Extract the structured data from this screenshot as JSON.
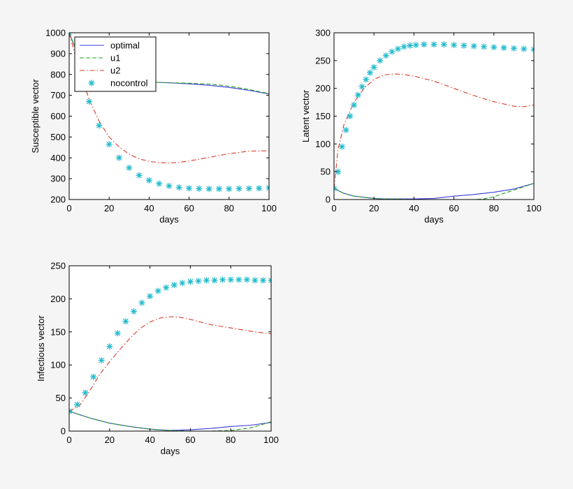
{
  "chart_data": [
    {
      "type": "line",
      "xlabel": "days",
      "ylabel": "Susceptible vector",
      "xlim": [
        0,
        100
      ],
      "ylim": [
        200,
        1000
      ],
      "xticks": [
        0,
        20,
        40,
        60,
        80,
        100
      ],
      "yticks": [
        200,
        300,
        400,
        500,
        600,
        700,
        800,
        900,
        1000
      ],
      "grid": false,
      "legend_position": "top-left",
      "series": [
        {
          "name": "optimal",
          "color": "#3a3ad8",
          "style": "solid",
          "x": [
            0,
            5,
            10,
            15,
            20,
            30,
            40,
            50,
            60,
            70,
            80,
            90,
            100
          ],
          "y": [
            1000,
            880,
            810,
            785,
            775,
            768,
            764,
            760,
            755,
            748,
            738,
            724,
            706
          ]
        },
        {
          "name": "u1",
          "color": "#22a022",
          "style": "dashed",
          "x": [
            0,
            5,
            10,
            15,
            20,
            30,
            40,
            50,
            60,
            70,
            80,
            90,
            100
          ],
          "y": [
            1000,
            880,
            810,
            785,
            775,
            768,
            764,
            760,
            758,
            754,
            744,
            728,
            708
          ]
        },
        {
          "name": "u2",
          "color": "#d83a2a",
          "style": "dashdot",
          "x": [
            0,
            5,
            10,
            15,
            20,
            25,
            30,
            35,
            40,
            45,
            50,
            55,
            60,
            70,
            80,
            90,
            100
          ],
          "y": [
            1000,
            820,
            680,
            575,
            500,
            452,
            418,
            395,
            383,
            377,
            375,
            378,
            385,
            402,
            420,
            432,
            434
          ]
        },
        {
          "name": "nocontrol",
          "color": "#22bbcc",
          "style": "markers",
          "x": [
            0,
            5,
            10,
            15,
            20,
            25,
            30,
            35,
            40,
            45,
            50,
            55,
            60,
            65,
            70,
            75,
            80,
            85,
            90,
            95,
            100
          ],
          "y": [
            1000,
            820,
            670,
            555,
            465,
            400,
            352,
            316,
            292,
            276,
            265,
            258,
            254,
            252,
            251,
            251,
            251,
            252,
            253,
            254,
            256
          ]
        }
      ]
    },
    {
      "type": "line",
      "xlabel": "days",
      "ylabel": "Latent vector",
      "xlim": [
        0,
        100
      ],
      "ylim": [
        0,
        300
      ],
      "xticks": [
        0,
        20,
        40,
        60,
        80,
        100
      ],
      "yticks": [
        0,
        50,
        100,
        150,
        200,
        250,
        300
      ],
      "grid": false,
      "series": [
        {
          "name": "optimal",
          "color": "#3a3ad8",
          "style": "solid",
          "x": [
            0,
            5,
            10,
            15,
            20,
            25,
            30,
            40,
            50,
            60,
            70,
            80,
            90,
            100
          ],
          "y": [
            20,
            11,
            6,
            4,
            2,
            1,
            1,
            1,
            2,
            6,
            9,
            13,
            19,
            29
          ]
        },
        {
          "name": "u1",
          "color": "#22a022",
          "style": "dashed",
          "x": [
            0,
            5,
            10,
            15,
            20,
            25,
            30,
            40,
            50,
            60,
            70,
            75,
            80,
            90,
            100
          ],
          "y": [
            20,
            11,
            6,
            4,
            2,
            1,
            1,
            0,
            0,
            0,
            0,
            1,
            5,
            17,
            29
          ]
        },
        {
          "name": "u2",
          "color": "#d83a2a",
          "style": "dashdot",
          "x": [
            0,
            2,
            5,
            10,
            15,
            20,
            25,
            30,
            35,
            40,
            50,
            60,
            70,
            80,
            90,
            95,
            100
          ],
          "y": [
            20,
            90,
            135,
            175,
            200,
            216,
            224,
            226,
            225,
            222,
            213,
            200,
            187,
            176,
            168,
            167,
            170
          ]
        },
        {
          "name": "nocontrol",
          "color": "#22bbcc",
          "style": "markers",
          "x": [
            0,
            2,
            4,
            6,
            8,
            10,
            12,
            14,
            16,
            18,
            20,
            23,
            26,
            29,
            32,
            35,
            38,
            41,
            45,
            50,
            55,
            60,
            65,
            70,
            75,
            80,
            85,
            90,
            95,
            100
          ],
          "y": [
            20,
            50,
            95,
            125,
            150,
            170,
            188,
            203,
            216,
            228,
            238,
            250,
            259,
            266,
            271,
            275,
            277,
            278,
            279,
            279,
            279,
            278,
            277,
            276,
            275,
            274,
            273,
            272,
            271,
            270
          ]
        }
      ]
    },
    {
      "type": "line",
      "xlabel": "days",
      "ylabel": "Infectious vector",
      "xlim": [
        0,
        100
      ],
      "ylim": [
        0,
        250
      ],
      "xticks": [
        0,
        20,
        40,
        60,
        80,
        100
      ],
      "yticks": [
        0,
        50,
        100,
        150,
        200,
        250
      ],
      "grid": false,
      "series": [
        {
          "name": "optimal",
          "color": "#3a3ad8",
          "style": "solid",
          "x": [
            0,
            5,
            10,
            15,
            20,
            30,
            40,
            50,
            60,
            70,
            80,
            90,
            100
          ],
          "y": [
            30,
            25,
            20,
            16,
            12,
            7,
            3,
            1,
            2,
            4,
            7,
            9,
            13
          ]
        },
        {
          "name": "u1",
          "color": "#22a022",
          "style": "dashed",
          "x": [
            0,
            5,
            10,
            15,
            20,
            30,
            40,
            50,
            60,
            70,
            80,
            90,
            100
          ],
          "y": [
            30,
            25,
            20,
            16,
            12,
            7,
            3,
            1,
            0,
            0,
            1,
            5,
            14
          ]
        },
        {
          "name": "u2",
          "color": "#d83a2a",
          "style": "dashdot",
          "x": [
            0,
            5,
            10,
            15,
            20,
            25,
            30,
            35,
            40,
            45,
            50,
            55,
            60,
            65,
            70,
            80,
            90,
            100
          ],
          "y": [
            30,
            38,
            60,
            85,
            105,
            123,
            140,
            155,
            165,
            171,
            173,
            172,
            169,
            165,
            161,
            156,
            151,
            147
          ]
        },
        {
          "name": "nocontrol",
          "color": "#22bbcc",
          "style": "markers",
          "x": [
            0,
            4,
            8,
            12,
            16,
            20,
            24,
            28,
            32,
            36,
            40,
            44,
            48,
            52,
            56,
            60,
            64,
            68,
            72,
            76,
            80,
            84,
            88,
            92,
            96,
            100
          ],
          "y": [
            30,
            40,
            58,
            82,
            107,
            128,
            148,
            166,
            181,
            194,
            204,
            212,
            217,
            221,
            224,
            226,
            227,
            228,
            228,
            229,
            229,
            229,
            229,
            228,
            228,
            228
          ]
        }
      ]
    }
  ]
}
